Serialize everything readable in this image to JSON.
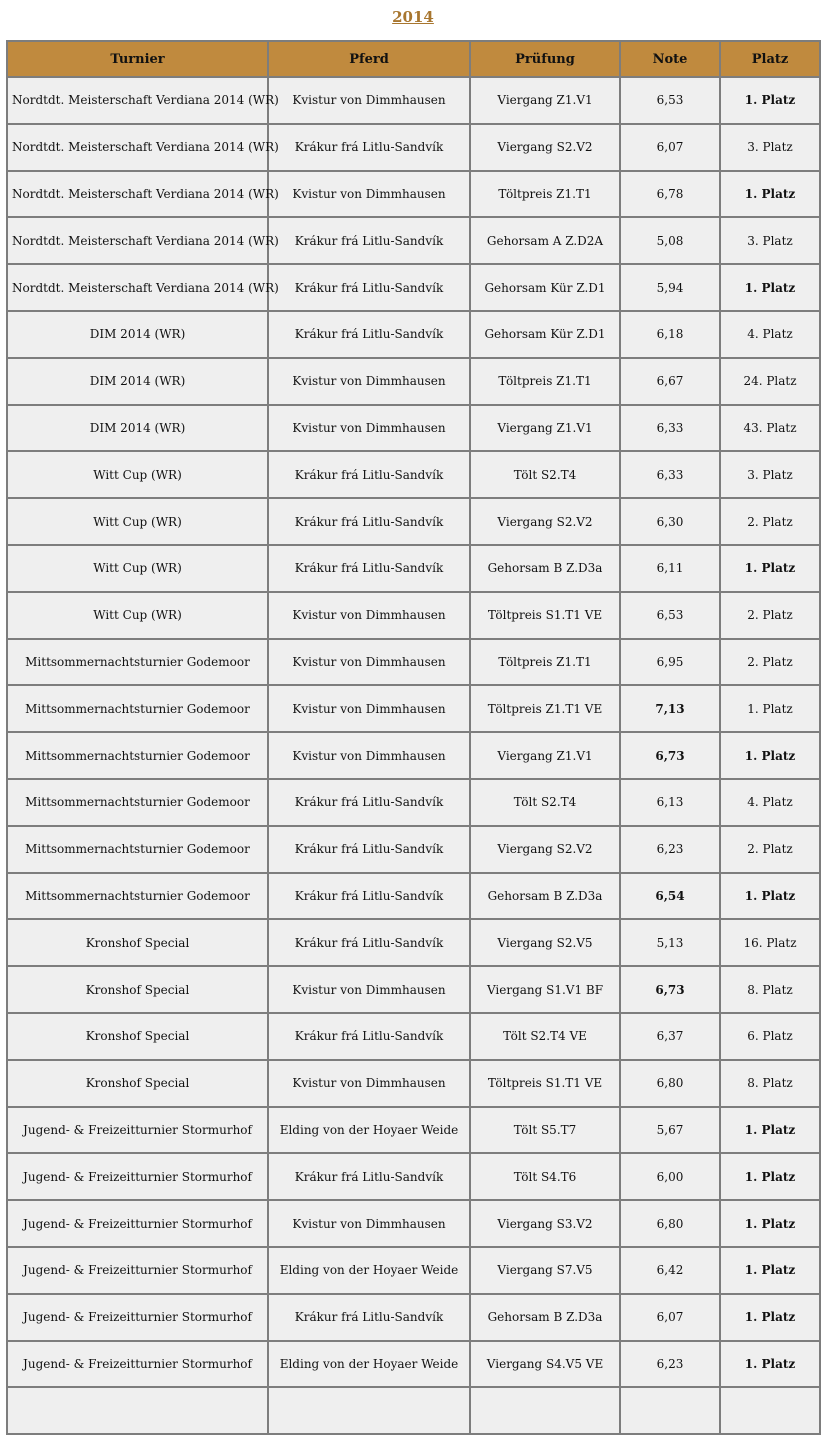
{
  "year": "2014",
  "colors": {
    "header": "#c08a3e",
    "year_link": "#a8762f",
    "cell": "#efefef"
  },
  "columns": [
    "Turnier",
    "Pferd",
    "Prüfung",
    "Note",
    "Platz"
  ],
  "rows": [
    [
      "Nordtdt. Meisterschaft Verdiana 2014 (WR)",
      "Kvistur von Dimmhausen",
      "Viergang Z1.V1",
      "6,53",
      "1. Platz",
      0,
      1
    ],
    [
      "Nordtdt. Meisterschaft Verdiana 2014 (WR)",
      "Krákur frá Litlu-Sandvík",
      "Viergang S2.V2",
      "6,07",
      "3. Platz",
      0,
      0
    ],
    [
      "Nordtdt. Meisterschaft Verdiana 2014 (WR)",
      "Kvistur von Dimmhausen",
      "Töltpreis Z1.T1",
      "6,78",
      "1. Platz",
      0,
      1
    ],
    [
      "Nordtdt. Meisterschaft Verdiana 2014 (WR)",
      "Krákur frá Litlu-Sandvík",
      "Gehorsam A Z.D2A",
      "5,08",
      "3. Platz",
      0,
      0
    ],
    [
      "Nordtdt. Meisterschaft Verdiana 2014 (WR)",
      "Krákur frá Litlu-Sandvík",
      "Gehorsam Kür Z.D1",
      "5,94",
      "1. Platz",
      0,
      1
    ],
    [
      "DIM 2014 (WR)",
      "Krákur frá Litlu-Sandvík",
      "Gehorsam Kür Z.D1",
      "6,18",
      "4. Platz",
      0,
      0
    ],
    [
      "DIM 2014 (WR)",
      "Kvistur von Dimmhausen",
      "Töltpreis Z1.T1",
      "6,67",
      "24. Platz",
      0,
      0
    ],
    [
      "DIM 2014 (WR)",
      "Kvistur von Dimmhausen",
      "Viergang Z1.V1",
      "6,33",
      "43. Platz",
      0,
      0
    ],
    [
      "Witt Cup (WR)",
      "Krákur frá Litlu-Sandvík",
      "Tölt S2.T4",
      "6,33",
      "3. Platz",
      0,
      0
    ],
    [
      "Witt Cup (WR)",
      "Krákur frá Litlu-Sandvík",
      "Viergang S2.V2",
      "6,30",
      "2. Platz",
      0,
      0
    ],
    [
      "Witt Cup (WR)",
      "Krákur frá Litlu-Sandvík",
      "Gehorsam B Z.D3a",
      "6,11",
      "1. Platz",
      0,
      1
    ],
    [
      "Witt Cup (WR)",
      "Kvistur von Dimmhausen",
      "Töltpreis S1.T1 VE",
      "6,53",
      "2. Platz",
      0,
      0
    ],
    [
      "Mittsommernachtsturnier Godemoor",
      "Kvistur von Dimmhausen",
      "Töltpreis Z1.T1",
      "6,95",
      "2. Platz",
      0,
      0
    ],
    [
      "Mittsommernachtsturnier Godemoor",
      "Kvistur von Dimmhausen",
      "Töltpreis Z1.T1 VE",
      "7,13",
      "1. Platz",
      1,
      0
    ],
    [
      "Mittsommernachtsturnier Godemoor",
      "Kvistur von Dimmhausen",
      "Viergang Z1.V1",
      "6,73",
      "1. Platz",
      1,
      1
    ],
    [
      "Mittsommernachtsturnier Godemoor",
      "Krákur frá Litlu-Sandvík",
      "Tölt S2.T4",
      "6,13",
      "4. Platz",
      0,
      0
    ],
    [
      "Mittsommernachtsturnier Godemoor",
      "Krákur frá Litlu-Sandvík",
      "Viergang S2.V2",
      "6,23",
      "2. Platz",
      0,
      0
    ],
    [
      "Mittsommernachtsturnier Godemoor",
      "Krákur frá Litlu-Sandvík",
      "Gehorsam B Z.D3a",
      "6,54",
      "1. Platz",
      1,
      1
    ],
    [
      "Kronshof Special",
      "Krákur frá Litlu-Sandvík",
      "Viergang S2.V5",
      "5,13",
      "16. Platz",
      0,
      0
    ],
    [
      "Kronshof Special",
      "Kvistur von Dimmhausen",
      "Viergang S1.V1 BF",
      "6,73",
      "8. Platz",
      1,
      0
    ],
    [
      "Kronshof Special",
      "Krákur frá Litlu-Sandvík",
      "Tölt S2.T4 VE",
      "6,37",
      "6. Platz",
      0,
      0
    ],
    [
      "Kronshof Special",
      "Kvistur von Dimmhausen",
      "Töltpreis S1.T1 VE",
      "6,80",
      "8. Platz",
      0,
      0
    ],
    [
      "Jugend- & Freizeitturnier Stormurhof",
      "Elding von der Hoyaer Weide",
      "Tölt S5.T7",
      "5,67",
      "1. Platz",
      0,
      1
    ],
    [
      "Jugend- & Freizeitturnier Stormurhof",
      "Krákur frá Litlu-Sandvík",
      "Tölt S4.T6",
      "6,00",
      "1. Platz",
      0,
      1
    ],
    [
      "Jugend- & Freizeitturnier Stormurhof",
      "Kvistur von Dimmhausen",
      "Viergang S3.V2",
      "6,80",
      "1. Platz",
      0,
      1
    ],
    [
      "Jugend- & Freizeitturnier Stormurhof",
      "Elding von der Hoyaer Weide",
      "Viergang S7.V5",
      "6,42",
      "1. Platz",
      0,
      1
    ],
    [
      "Jugend- & Freizeitturnier Stormurhof",
      "Krákur frá Litlu-Sandvík",
      "Gehorsam B Z.D3a",
      "6,07",
      "1. Platz",
      0,
      1
    ],
    [
      "Jugend- & Freizeitturnier Stormurhof",
      "Elding von der Hoyaer Weide",
      "Viergang S4.V5 VE",
      "6,23",
      "1. Platz",
      0,
      1
    ]
  ]
}
